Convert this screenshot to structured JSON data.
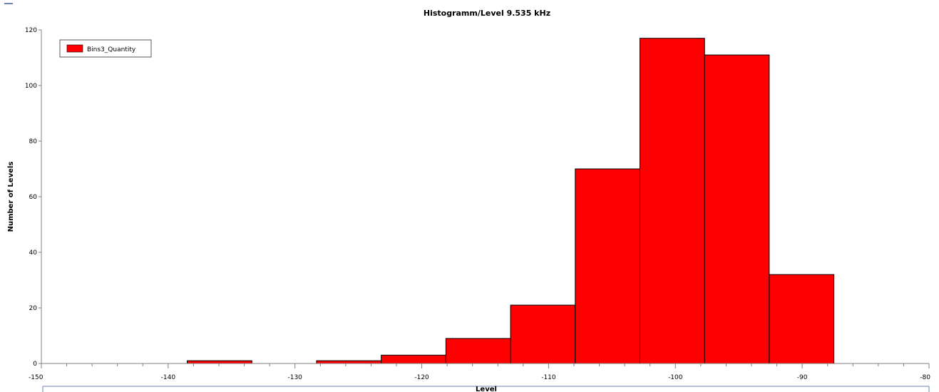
{
  "chart_data": {
    "type": "bar",
    "title": "Histogramm/Level 9.535 kHz",
    "xlabel": "Level",
    "ylabel": "Number of Levels",
    "xlim": [
      -150,
      -80
    ],
    "ylim": [
      0,
      120
    ],
    "x_ticks": [
      -150,
      -140,
      -130,
      -120,
      -110,
      -100,
      -90,
      -80
    ],
    "y_ticks": [
      0,
      20,
      40,
      60,
      80,
      100,
      120
    ],
    "grid": false,
    "legend_position": "top-left",
    "bin_width": 5.1,
    "series": [
      {
        "name": "Bins3_Quantity",
        "color": "#ff0000",
        "bins": [
          {
            "start": -138.5,
            "end": -133.4,
            "value": 1
          },
          {
            "start": -133.4,
            "end": -128.3,
            "value": 0
          },
          {
            "start": -128.3,
            "end": -123.2,
            "value": 1
          },
          {
            "start": -123.2,
            "end": -118.1,
            "value": 3
          },
          {
            "start": -118.1,
            "end": -113.0,
            "value": 9
          },
          {
            "start": -113.0,
            "end": -107.9,
            "value": 21
          },
          {
            "start": -107.9,
            "end": -102.8,
            "value": 70
          },
          {
            "start": -102.8,
            "end": -97.7,
            "value": 117
          },
          {
            "start": -97.7,
            "end": -92.6,
            "value": 111
          },
          {
            "start": -92.6,
            "end": -87.5,
            "value": 32
          }
        ]
      }
    ]
  }
}
